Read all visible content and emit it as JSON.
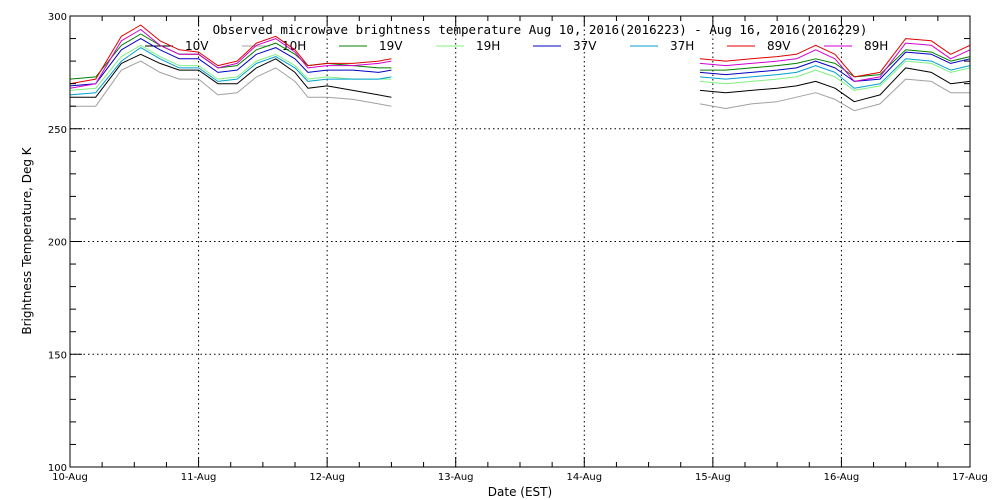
{
  "chart_data": {
    "type": "line",
    "title": "Observed microwave brightness temperature Aug 10, 2016(2016223) - Aug 16, 2016(2016229)",
    "xlabel": "Date (EST)",
    "ylabel": "Brightness Temperature, Deg K",
    "xlim": [
      0,
      7
    ],
    "ylim": [
      100,
      300
    ],
    "x_ticks": [
      {
        "value": 0,
        "label": "10-Aug"
      },
      {
        "value": 1,
        "label": "11-Aug"
      },
      {
        "value": 2,
        "label": "12-Aug"
      },
      {
        "value": 3,
        "label": "13-Aug"
      },
      {
        "value": 4,
        "label": "14-Aug"
      },
      {
        "value": 5,
        "label": "15-Aug"
      },
      {
        "value": 6,
        "label": "16-Aug"
      },
      {
        "value": 7,
        "label": "17-Aug"
      }
    ],
    "y_ticks": [
      {
        "value": 100,
        "label": "100"
      },
      {
        "value": 150,
        "label": "150"
      },
      {
        "value": 200,
        "label": "200"
      },
      {
        "value": 250,
        "label": "250"
      },
      {
        "value": 300,
        "label": "300"
      }
    ],
    "grid": true,
    "legend_position": "top",
    "x": [
      0.0,
      0.2,
      0.4,
      0.55,
      0.7,
      0.85,
      1.0,
      1.15,
      1.3,
      1.45,
      1.6,
      1.75,
      1.85,
      2.0,
      2.2,
      2.4,
      2.5,
      4.72,
      4.9,
      5.1,
      5.3,
      5.5,
      5.65,
      5.8,
      5.95,
      6.1,
      6.3,
      6.5,
      6.7,
      6.85,
      7.0
    ],
    "series": [
      {
        "name": "10V",
        "color": "#000000",
        "values": [
          264,
          264,
          279,
          283,
          279,
          276,
          276,
          270,
          270,
          277,
          281,
          275,
          268,
          269,
          267,
          265,
          264,
          null,
          267,
          266,
          267,
          268,
          269,
          271,
          268,
          262,
          265,
          277,
          275,
          270,
          271
        ]
      },
      {
        "name": "10H",
        "color": "#a0a0a0",
        "values": [
          260,
          260,
          276,
          280,
          275,
          272,
          272,
          265,
          266,
          273,
          277,
          271,
          264,
          264,
          263,
          261,
          260,
          null,
          261,
          259,
          261,
          262,
          264,
          266,
          263,
          258,
          261,
          272,
          271,
          266,
          266
        ]
      },
      {
        "name": "19V",
        "color": "#008000",
        "values": [
          272,
          273,
          287,
          292,
          287,
          283,
          283,
          277,
          278,
          285,
          288,
          283,
          278,
          279,
          278,
          277,
          277,
          null,
          276,
          276,
          277,
          278,
          279,
          281,
          279,
          273,
          274,
          285,
          284,
          280,
          282
        ]
      },
      {
        "name": "19H",
        "color": "#80f080",
        "values": [
          267,
          268,
          282,
          287,
          282,
          278,
          278,
          272,
          273,
          280,
          283,
          278,
          272,
          273,
          272,
          272,
          272,
          null,
          271,
          270,
          271,
          272,
          273,
          276,
          273,
          267,
          269,
          280,
          279,
          275,
          277
        ]
      },
      {
        "name": "37V",
        "color": "#0000c0",
        "values": [
          269,
          270,
          285,
          290,
          285,
          281,
          281,
          275,
          276,
          283,
          286,
          281,
          275,
          276,
          276,
          275,
          276,
          null,
          275,
          274,
          275,
          276,
          277,
          280,
          277,
          271,
          272,
          284,
          283,
          279,
          281
        ]
      },
      {
        "name": "37H",
        "color": "#00a0d0",
        "values": [
          265,
          266,
          280,
          286,
          281,
          277,
          277,
          271,
          272,
          279,
          282,
          277,
          271,
          272,
          272,
          272,
          273,
          null,
          273,
          272,
          273,
          274,
          275,
          278,
          275,
          268,
          270,
          281,
          280,
          276,
          278
        ]
      },
      {
        "name": "89V",
        "color": "#e00000",
        "values": [
          270,
          272,
          291,
          296,
          289,
          285,
          284,
          278,
          280,
          288,
          291,
          285,
          278,
          279,
          279,
          280,
          281,
          null,
          281,
          280,
          281,
          282,
          283,
          287,
          283,
          273,
          275,
          290,
          289,
          283,
          287
        ]
      },
      {
        "name": "89H",
        "color": "#d000d0",
        "values": [
          268,
          270,
          289,
          294,
          287,
          283,
          283,
          277,
          279,
          287,
          290,
          284,
          277,
          278,
          278,
          279,
          280,
          null,
          279,
          278,
          279,
          280,
          281,
          285,
          281,
          271,
          273,
          288,
          287,
          281,
          285
        ]
      }
    ]
  }
}
